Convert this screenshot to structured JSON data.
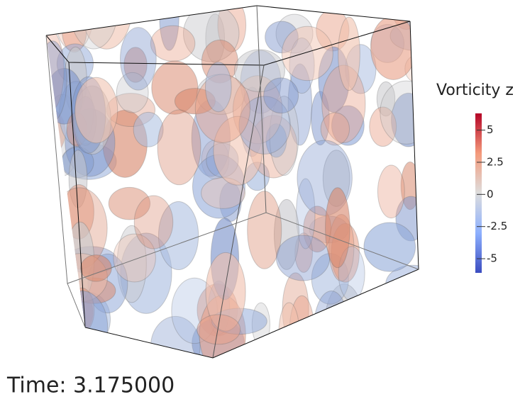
{
  "colorbar": {
    "title": "Vorticity z",
    "range": [
      -6.1,
      6.3
    ],
    "ticks": [
      5,
      2.5,
      0,
      -2.5,
      -5
    ]
  },
  "time_label": "Time: 3.175000"
}
